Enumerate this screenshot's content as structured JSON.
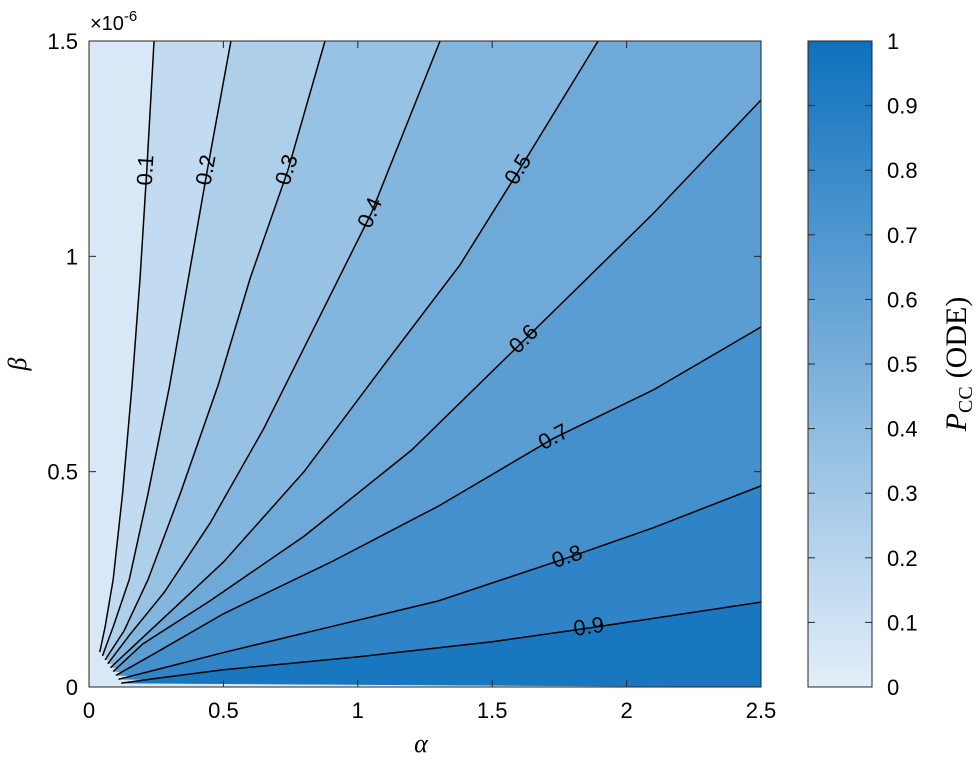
{
  "chart_data": {
    "type": "contour",
    "xlabel": "α",
    "ylabel": "β",
    "xlim": [
      0,
      2.5
    ],
    "xticks": [
      0,
      0.5,
      1,
      1.5,
      2,
      2.5
    ],
    "ylim": [
      0,
      1.5
    ],
    "yticks": [
      0,
      0.5,
      1,
      1.5
    ],
    "y_multiplier": {
      "base": "×10",
      "exponent": "-6"
    },
    "colormap": [
      "#e3eef9",
      "#0e71bd"
    ],
    "clim": [
      0,
      1
    ],
    "cticks": [
      0,
      0.1,
      0.2,
      0.3,
      0.4,
      0.5,
      0.6,
      0.7,
      0.8,
      0.9,
      1
    ],
    "colorbar_label": {
      "main": "P",
      "sub": "CC",
      "rest": "(ODE)"
    },
    "line_color": "#000000",
    "contours": [
      {
        "level": 0.1,
        "x": [
          0.242,
          0.215,
          0.19,
          0.16,
          0.125,
          0.09,
          0.06,
          0.04
        ],
        "y": [
          1.5,
          1.2,
          0.95,
          0.7,
          0.45,
          0.25,
          0.14,
          0.081
        ]
      },
      {
        "level": 0.2,
        "x": [
          0.528,
          0.44,
          0.37,
          0.3,
          0.22,
          0.15,
          0.09,
          0.05
        ],
        "y": [
          1.5,
          1.2,
          0.95,
          0.7,
          0.45,
          0.25,
          0.14,
          0.072
        ]
      },
      {
        "level": 0.3,
        "x": [
          0.878,
          0.74,
          0.6,
          0.48,
          0.34,
          0.22,
          0.13,
          0.06
        ],
        "y": [
          1.5,
          1.2,
          0.95,
          0.7,
          0.45,
          0.25,
          0.13,
          0.063
        ]
      },
      {
        "level": 0.4,
        "x": [
          1.306,
          1.05,
          0.85,
          0.65,
          0.45,
          0.28,
          0.15,
          0.07
        ],
        "y": [
          1.5,
          1.1,
          0.85,
          0.6,
          0.38,
          0.22,
          0.12,
          0.054
        ]
      },
      {
        "level": 0.5,
        "x": [
          1.894,
          1.6,
          1.38,
          1.1,
          0.8,
          0.5,
          0.26,
          0.08
        ],
        "y": [
          1.5,
          1.2,
          0.98,
          0.75,
          0.5,
          0.29,
          0.15,
          0.045
        ]
      },
      {
        "level": 0.6,
        "x": [
          2.5,
          2.1,
          1.62,
          1.2,
          0.8,
          0.45,
          0.2,
          0.09
        ],
        "y": [
          1.363,
          1.1,
          0.806,
          0.55,
          0.35,
          0.2,
          0.1,
          0.036
        ]
      },
      {
        "level": 0.7,
        "x": [
          2.5,
          2.1,
          1.73,
          1.3,
          0.9,
          0.5,
          0.25,
          0.1
        ],
        "y": [
          0.836,
          0.69,
          0.578,
          0.42,
          0.29,
          0.17,
          0.08,
          0.027
        ]
      },
      {
        "level": 0.8,
        "x": [
          2.5,
          2.1,
          1.78,
          1.3,
          0.9,
          0.5,
          0.25,
          0.11
        ],
        "y": [
          0.467,
          0.37,
          0.3,
          0.2,
          0.14,
          0.08,
          0.04,
          0.018
        ]
      },
      {
        "level": 0.9,
        "x": [
          2.5,
          1.86,
          1.5,
          1.0,
          0.5,
          0.25,
          0.12
        ],
        "y": [
          0.197,
          0.137,
          0.105,
          0.07,
          0.04,
          0.02,
          0.009
        ]
      }
    ]
  }
}
